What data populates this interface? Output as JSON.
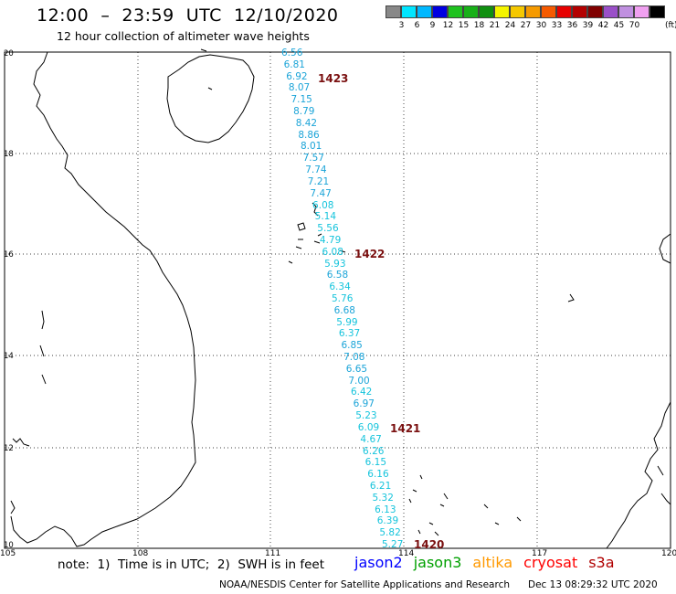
{
  "header": {
    "title": "12:00  –  23:59  UTC  12/10/2020",
    "subtitle": "12 hour collection of altimeter wave heights"
  },
  "colorbar": {
    "colors": [
      "#888888",
      "#00e5ff",
      "#00b8ff",
      "#0000e0",
      "#1fc21f",
      "#18b018",
      "#109010",
      "#f5f500",
      "#f5c800",
      "#f59a00",
      "#f55a00",
      "#e60000",
      "#b30000",
      "#800000",
      "#9a50c8",
      "#c090e0",
      "#f0a0f0",
      "#000000"
    ],
    "ticks": [
      "3",
      "6",
      "9",
      "12",
      "15",
      "18",
      "21",
      "24",
      "27",
      "30",
      "33",
      "36",
      "39",
      "42",
      "45",
      "70"
    ],
    "unit": "(ft)"
  },
  "axes": {
    "lat_ticks": [
      "20",
      "18",
      "16",
      "14",
      "12",
      "10"
    ],
    "lon_ticks": [
      "105",
      "108",
      "111",
      "114",
      "117",
      "120"
    ]
  },
  "track": {
    "color": "#1ba4d8",
    "values": [
      "6.56",
      "6.81",
      "6.92",
      "8.07",
      "7.15",
      "8.79",
      "8.42",
      "8.86",
      "8.01",
      "7.57",
      "7.74",
      "7.21",
      "7.47",
      "6.08",
      "5.14",
      "5.56",
      "4.79",
      "6.08",
      "5.93",
      "6.58",
      "6.34",
      "5.76",
      "6.68",
      "5.99",
      "6.37",
      "6.85",
      "7.08",
      "6.65",
      "7.00",
      "6.42",
      "6.97",
      "5.23",
      "6.09",
      "4.67",
      "6.26",
      "6.15",
      "6.16",
      "6.21",
      "5.32",
      "6.13",
      "6.39",
      "5.82",
      "5.27"
    ],
    "times": [
      "1423",
      "1422",
      "1421",
      "1420"
    ]
  },
  "footer": {
    "note": "note:  1)  Time is in UTC;  2)  SWH is in feet",
    "missions": [
      {
        "label": "jason2",
        "color": "#0000ff"
      },
      {
        "label": "jason3",
        "color": "#00a000"
      },
      {
        "label": "altika",
        "color": "#ff9900"
      },
      {
        "label": "cryosat",
        "color": "#ff0000"
      },
      {
        "label": "s3a",
        "color": "#b00000"
      }
    ],
    "credit": "NOAA/NESDIS Center for Satellite Applications and Research",
    "stamp": "Dec 13 08:29:32 UTC 2020"
  }
}
